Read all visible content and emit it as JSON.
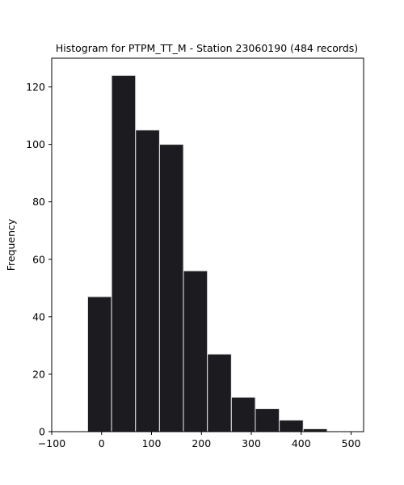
{
  "chart_data": {
    "type": "bar",
    "title": "Histogram for PTPM_TT_M - Station 23060190 (484 records)",
    "xlabel": "",
    "ylabel": "Frequency",
    "xlim": [
      -100,
      525
    ],
    "ylim": [
      0,
      130
    ],
    "xticks": [
      "−100",
      "0",
      "100",
      "200",
      "300",
      "400",
      "500"
    ],
    "xtick_values": [
      -100,
      0,
      100,
      200,
      300,
      400,
      500
    ],
    "yticks": [
      "0",
      "20",
      "40",
      "60",
      "80",
      "100",
      "120"
    ],
    "ytick_values": [
      0,
      20,
      40,
      60,
      80,
      100,
      120
    ],
    "grid": false,
    "bar_color": "#1c1c20",
    "edge_color": "#e6e6e6",
    "bins": [
      {
        "start": -28,
        "end": 20,
        "count": 47
      },
      {
        "start": 20,
        "end": 68,
        "count": 124
      },
      {
        "start": 68,
        "end": 116,
        "count": 105
      },
      {
        "start": 116,
        "end": 164,
        "count": 100
      },
      {
        "start": 164,
        "end": 212,
        "count": 56
      },
      {
        "start": 212,
        "end": 260,
        "count": 27
      },
      {
        "start": 260,
        "end": 308,
        "count": 12
      },
      {
        "start": 308,
        "end": 356,
        "count": 8
      },
      {
        "start": 356,
        "end": 404,
        "count": 4
      },
      {
        "start": 404,
        "end": 452,
        "count": 1
      }
    ]
  }
}
